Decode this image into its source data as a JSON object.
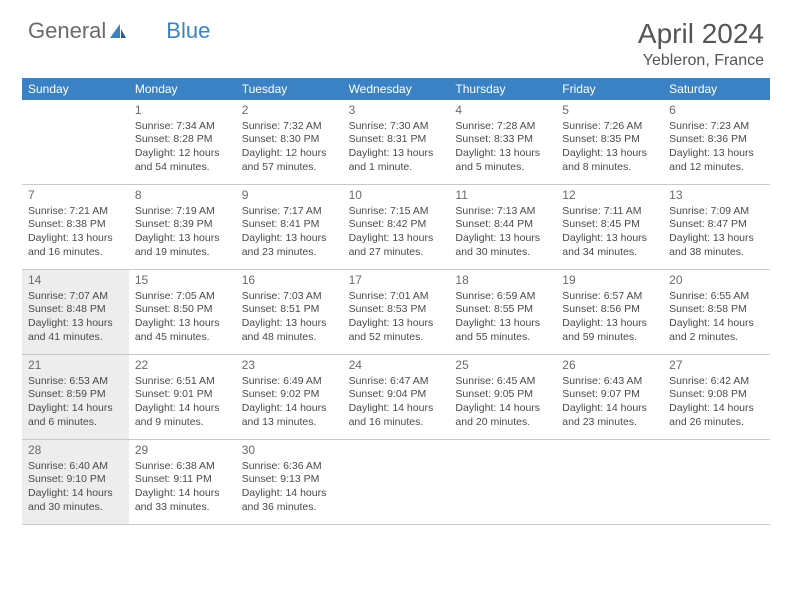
{
  "brand": {
    "part1": "General",
    "part2": "Blue"
  },
  "title": "April 2024",
  "location": "Yebleron, France",
  "colors": {
    "header_bg": "#3b82c4",
    "header_text": "#ffffff",
    "text": "#4a4a4a",
    "title_text": "#555555",
    "shaded_bg": "#ededed",
    "border": "#c9c9c9"
  },
  "day_labels": [
    "Sunday",
    "Monday",
    "Tuesday",
    "Wednesday",
    "Thursday",
    "Friday",
    "Saturday"
  ],
  "weeks": [
    [
      {
        "num": "",
        "shaded": false,
        "sunrise": "",
        "sunset": "",
        "daylight": ""
      },
      {
        "num": "1",
        "shaded": false,
        "sunrise": "Sunrise: 7:34 AM",
        "sunset": "Sunset: 8:28 PM",
        "daylight": "Daylight: 12 hours and 54 minutes."
      },
      {
        "num": "2",
        "shaded": false,
        "sunrise": "Sunrise: 7:32 AM",
        "sunset": "Sunset: 8:30 PM",
        "daylight": "Daylight: 12 hours and 57 minutes."
      },
      {
        "num": "3",
        "shaded": false,
        "sunrise": "Sunrise: 7:30 AM",
        "sunset": "Sunset: 8:31 PM",
        "daylight": "Daylight: 13 hours and 1 minute."
      },
      {
        "num": "4",
        "shaded": false,
        "sunrise": "Sunrise: 7:28 AM",
        "sunset": "Sunset: 8:33 PM",
        "daylight": "Daylight: 13 hours and 5 minutes."
      },
      {
        "num": "5",
        "shaded": false,
        "sunrise": "Sunrise: 7:26 AM",
        "sunset": "Sunset: 8:35 PM",
        "daylight": "Daylight: 13 hours and 8 minutes."
      },
      {
        "num": "6",
        "shaded": false,
        "sunrise": "Sunrise: 7:23 AM",
        "sunset": "Sunset: 8:36 PM",
        "daylight": "Daylight: 13 hours and 12 minutes."
      }
    ],
    [
      {
        "num": "7",
        "shaded": false,
        "sunrise": "Sunrise: 7:21 AM",
        "sunset": "Sunset: 8:38 PM",
        "daylight": "Daylight: 13 hours and 16 minutes."
      },
      {
        "num": "8",
        "shaded": false,
        "sunrise": "Sunrise: 7:19 AM",
        "sunset": "Sunset: 8:39 PM",
        "daylight": "Daylight: 13 hours and 19 minutes."
      },
      {
        "num": "9",
        "shaded": false,
        "sunrise": "Sunrise: 7:17 AM",
        "sunset": "Sunset: 8:41 PM",
        "daylight": "Daylight: 13 hours and 23 minutes."
      },
      {
        "num": "10",
        "shaded": false,
        "sunrise": "Sunrise: 7:15 AM",
        "sunset": "Sunset: 8:42 PM",
        "daylight": "Daylight: 13 hours and 27 minutes."
      },
      {
        "num": "11",
        "shaded": false,
        "sunrise": "Sunrise: 7:13 AM",
        "sunset": "Sunset: 8:44 PM",
        "daylight": "Daylight: 13 hours and 30 minutes."
      },
      {
        "num": "12",
        "shaded": false,
        "sunrise": "Sunrise: 7:11 AM",
        "sunset": "Sunset: 8:45 PM",
        "daylight": "Daylight: 13 hours and 34 minutes."
      },
      {
        "num": "13",
        "shaded": false,
        "sunrise": "Sunrise: 7:09 AM",
        "sunset": "Sunset: 8:47 PM",
        "daylight": "Daylight: 13 hours and 38 minutes."
      }
    ],
    [
      {
        "num": "14",
        "shaded": true,
        "sunrise": "Sunrise: 7:07 AM",
        "sunset": "Sunset: 8:48 PM",
        "daylight": "Daylight: 13 hours and 41 minutes."
      },
      {
        "num": "15",
        "shaded": false,
        "sunrise": "Sunrise: 7:05 AM",
        "sunset": "Sunset: 8:50 PM",
        "daylight": "Daylight: 13 hours and 45 minutes."
      },
      {
        "num": "16",
        "shaded": false,
        "sunrise": "Sunrise: 7:03 AM",
        "sunset": "Sunset: 8:51 PM",
        "daylight": "Daylight: 13 hours and 48 minutes."
      },
      {
        "num": "17",
        "shaded": false,
        "sunrise": "Sunrise: 7:01 AM",
        "sunset": "Sunset: 8:53 PM",
        "daylight": "Daylight: 13 hours and 52 minutes."
      },
      {
        "num": "18",
        "shaded": false,
        "sunrise": "Sunrise: 6:59 AM",
        "sunset": "Sunset: 8:55 PM",
        "daylight": "Daylight: 13 hours and 55 minutes."
      },
      {
        "num": "19",
        "shaded": false,
        "sunrise": "Sunrise: 6:57 AM",
        "sunset": "Sunset: 8:56 PM",
        "daylight": "Daylight: 13 hours and 59 minutes."
      },
      {
        "num": "20",
        "shaded": false,
        "sunrise": "Sunrise: 6:55 AM",
        "sunset": "Sunset: 8:58 PM",
        "daylight": "Daylight: 14 hours and 2 minutes."
      }
    ],
    [
      {
        "num": "21",
        "shaded": true,
        "sunrise": "Sunrise: 6:53 AM",
        "sunset": "Sunset: 8:59 PM",
        "daylight": "Daylight: 14 hours and 6 minutes."
      },
      {
        "num": "22",
        "shaded": false,
        "sunrise": "Sunrise: 6:51 AM",
        "sunset": "Sunset: 9:01 PM",
        "daylight": "Daylight: 14 hours and 9 minutes."
      },
      {
        "num": "23",
        "shaded": false,
        "sunrise": "Sunrise: 6:49 AM",
        "sunset": "Sunset: 9:02 PM",
        "daylight": "Daylight: 14 hours and 13 minutes."
      },
      {
        "num": "24",
        "shaded": false,
        "sunrise": "Sunrise: 6:47 AM",
        "sunset": "Sunset: 9:04 PM",
        "daylight": "Daylight: 14 hours and 16 minutes."
      },
      {
        "num": "25",
        "shaded": false,
        "sunrise": "Sunrise: 6:45 AM",
        "sunset": "Sunset: 9:05 PM",
        "daylight": "Daylight: 14 hours and 20 minutes."
      },
      {
        "num": "26",
        "shaded": false,
        "sunrise": "Sunrise: 6:43 AM",
        "sunset": "Sunset: 9:07 PM",
        "daylight": "Daylight: 14 hours and 23 minutes."
      },
      {
        "num": "27",
        "shaded": false,
        "sunrise": "Sunrise: 6:42 AM",
        "sunset": "Sunset: 9:08 PM",
        "daylight": "Daylight: 14 hours and 26 minutes."
      }
    ],
    [
      {
        "num": "28",
        "shaded": true,
        "sunrise": "Sunrise: 6:40 AM",
        "sunset": "Sunset: 9:10 PM",
        "daylight": "Daylight: 14 hours and 30 minutes."
      },
      {
        "num": "29",
        "shaded": false,
        "sunrise": "Sunrise: 6:38 AM",
        "sunset": "Sunset: 9:11 PM",
        "daylight": "Daylight: 14 hours and 33 minutes."
      },
      {
        "num": "30",
        "shaded": false,
        "sunrise": "Sunrise: 6:36 AM",
        "sunset": "Sunset: 9:13 PM",
        "daylight": "Daylight: 14 hours and 36 minutes."
      },
      {
        "num": "",
        "shaded": false,
        "sunrise": "",
        "sunset": "",
        "daylight": ""
      },
      {
        "num": "",
        "shaded": false,
        "sunrise": "",
        "sunset": "",
        "daylight": ""
      },
      {
        "num": "",
        "shaded": false,
        "sunrise": "",
        "sunset": "",
        "daylight": ""
      },
      {
        "num": "",
        "shaded": false,
        "sunrise": "",
        "sunset": "",
        "daylight": ""
      }
    ]
  ]
}
